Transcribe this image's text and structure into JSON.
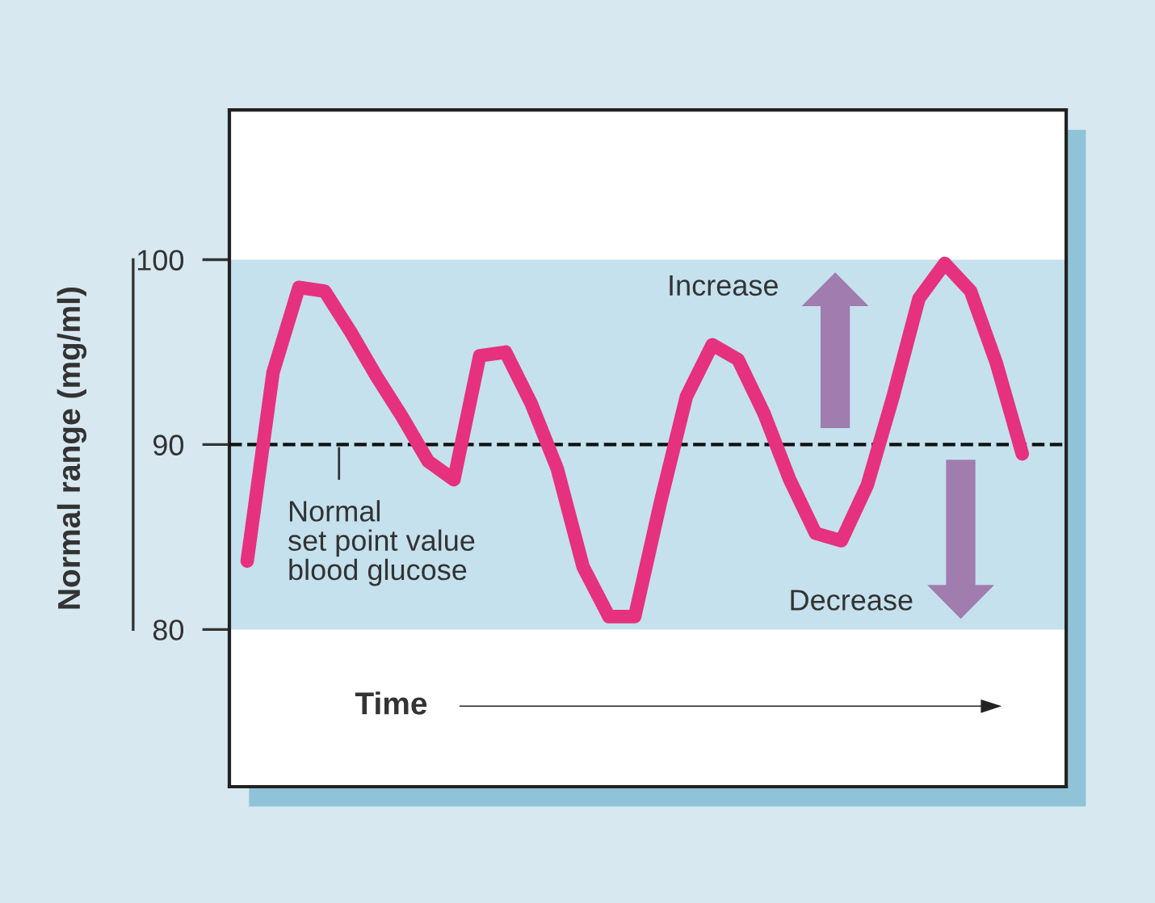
{
  "chart_data": {
    "type": "line",
    "xlabel": "Time",
    "ylabel": "Normal range (mg/ml)",
    "categories": [
      null,
      null,
      null,
      null,
      null,
      null,
      null,
      null,
      null,
      null,
      null,
      null,
      null,
      null,
      null,
      null,
      null,
      null,
      null,
      null,
      null,
      null,
      null,
      null,
      null,
      null,
      null,
      null,
      null,
      null,
      null
    ],
    "series": [
      {
        "color": "#e6317e",
        "values": [
          83.7,
          93.9,
          98.5,
          98.3,
          96.1,
          93.7,
          91.5,
          89.1,
          88.1,
          94.8,
          95.0,
          92.2,
          88.7,
          83.4,
          80.7,
          80.7,
          86.9,
          92.6,
          95.4,
          94.6,
          91.7,
          88.1,
          85.2,
          84.8,
          87.8,
          92.6,
          97.9,
          99.8,
          98.3,
          94.4,
          89.5
        ]
      }
    ],
    "ylim": [
      71.5,
      108.1
    ],
    "yticks": [
      80,
      90,
      100
    ],
    "bands": [
      {
        "axis": "y",
        "from": 80,
        "to": 100,
        "color": "#c4e1ed"
      }
    ],
    "ref_lines": [
      {
        "axis": "y",
        "value": 90,
        "label": "Normal\nset point value\nblood glucose",
        "color": "#111111",
        "line_style": "dashed"
      }
    ],
    "annotations": [
      "Increase",
      "Decrease"
    ],
    "tick_labels": "y",
    "grid": false,
    "legend": false,
    "marker": "none",
    "line_style": "solid"
  }
}
